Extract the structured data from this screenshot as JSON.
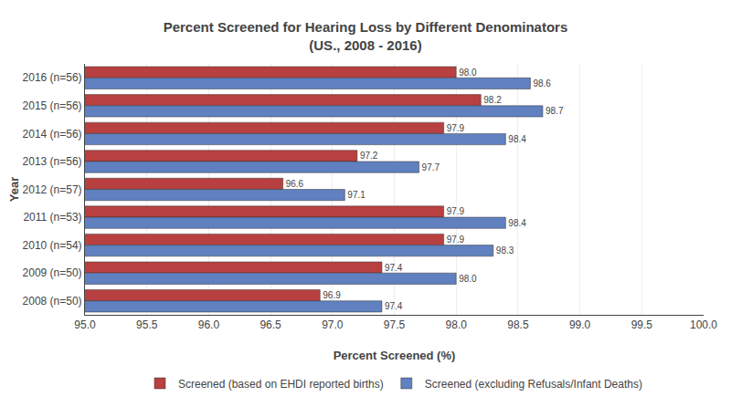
{
  "chart_data": {
    "type": "bar",
    "orientation": "horizontal",
    "title": "Percent Screened for Hearing Loss by Different Denominators",
    "subtitle": "(US., 2008 - 2016)",
    "xlabel": "Percent Screened (%)",
    "ylabel": "Year",
    "categories": [
      "2016 (n=56)",
      "2015 (n=56)",
      "2014 (n=56)",
      "2013 (n=56)",
      "2012 (n=57)",
      "2011 (n=53)",
      "2010 (n=54)",
      "2009 (n=50)",
      "2008 (n=50)"
    ],
    "series": [
      {
        "name": "Screened (based on EHDI reported births)",
        "color": "#B84040",
        "values": [
          98.0,
          98.2,
          97.9,
          97.2,
          96.6,
          97.9,
          97.9,
          97.4,
          96.9
        ],
        "value_labels": [
          "98.0",
          "98.2",
          "97.9",
          "97.2",
          "96.6",
          "97.9",
          "97.9",
          "97.4",
          "96.9"
        ]
      },
      {
        "name": "Screened (excluding Refusals/Infant Deaths)",
        "color": "#6080C0",
        "values": [
          98.6,
          98.7,
          98.4,
          97.7,
          97.1,
          98.4,
          98.3,
          98.0,
          97.4
        ],
        "value_labels": [
          "98.6",
          "98.7",
          "98.4",
          "97.7",
          "97.1",
          "98.4",
          "98.3",
          "98.0",
          "97.4"
        ]
      }
    ],
    "xlim": [
      95.0,
      100.0
    ],
    "xticks": [
      {
        "value": 95.0,
        "label": "95.0"
      },
      95.5,
      {
        "value": 96.0,
        "label": "96.0"
      },
      96.5,
      {
        "value": 97.0,
        "label": "97.0"
      },
      97.5,
      {
        "value": 98.0,
        "label": "98.0"
      },
      98.5,
      {
        "value": 99.0,
        "label": "99.0"
      },
      99.5,
      {
        "value": 100.0,
        "label": "100.0"
      }
    ],
    "grid": "x",
    "legend": "bottom",
    "data_labels": true
  }
}
